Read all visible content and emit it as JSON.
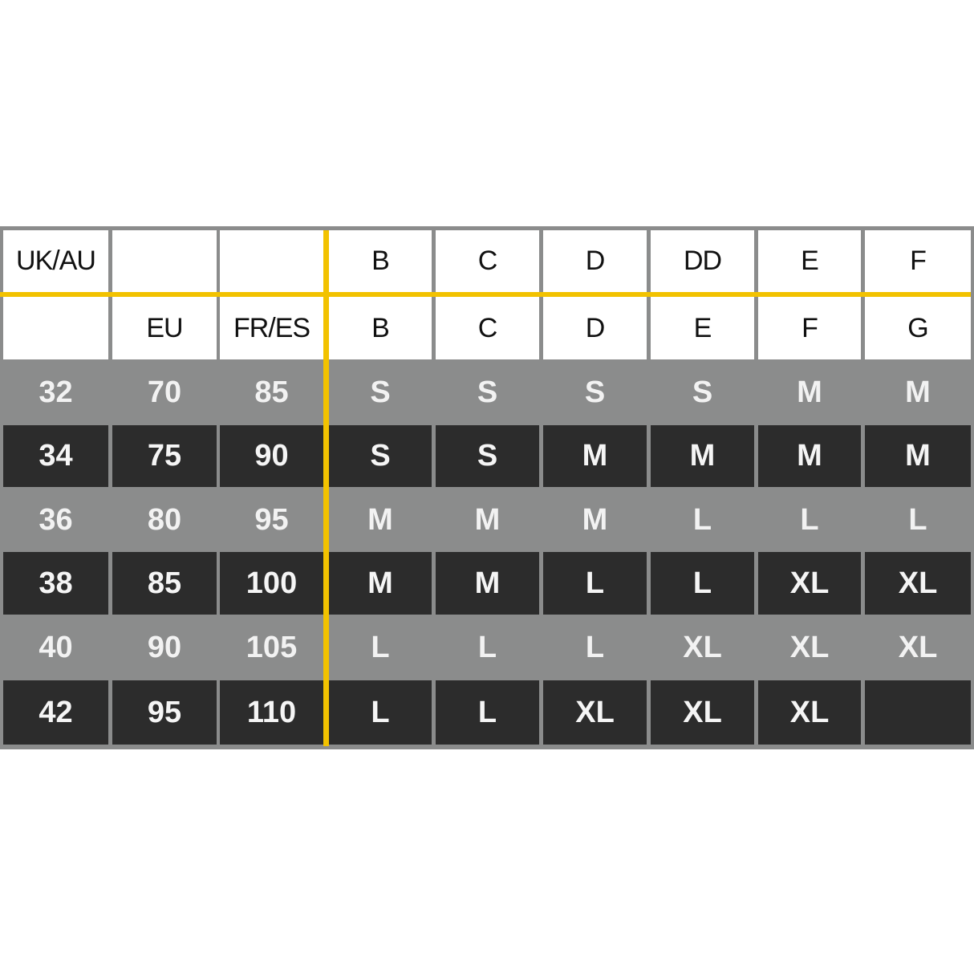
{
  "table": {
    "header_rows": [
      [
        "UK/AU",
        null,
        null,
        "B",
        "C",
        "D",
        "DD",
        "E",
        "F"
      ],
      [
        null,
        "EU",
        "FR/ES",
        "B",
        "C",
        "D",
        "E",
        "F",
        "G"
      ]
    ],
    "rows": [
      [
        32,
        70,
        85,
        "S",
        "S",
        "S",
        "S",
        "M",
        "M"
      ],
      [
        34,
        75,
        90,
        "S",
        "S",
        "M",
        "M",
        "M",
        "M"
      ],
      [
        36,
        80,
        95,
        "M",
        "M",
        "M",
        "L",
        "L",
        "L"
      ],
      [
        38,
        85,
        100,
        "M",
        "M",
        "L",
        "L",
        "XL",
        "XL"
      ],
      [
        40,
        90,
        105,
        "L",
        "L",
        "L",
        "XL",
        "XL",
        "XL"
      ],
      [
        42,
        95,
        110,
        "L",
        "L",
        "XL",
        "XL",
        "XL",
        null
      ]
    ]
  }
}
